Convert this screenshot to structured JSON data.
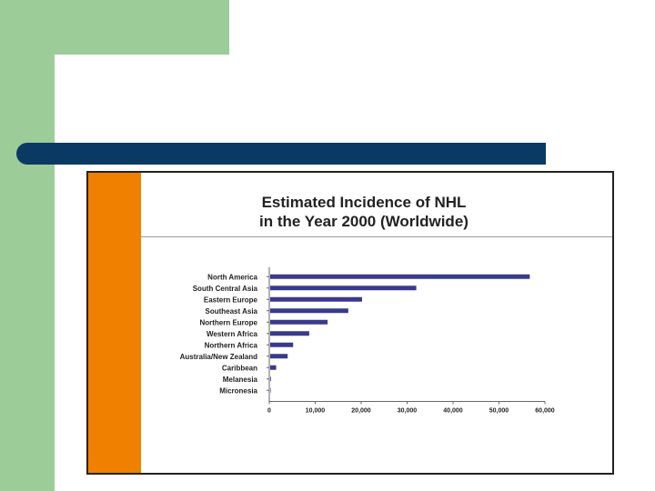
{
  "slide": {
    "colors": {
      "accent_green": "#9ccc98",
      "title_bar": "#0a3a64",
      "accent_orange": "#f08000",
      "bar": "#3a3a8c"
    }
  },
  "chart_data": {
    "type": "bar",
    "orientation": "horizontal",
    "title": "Estimated Incidence of NHL in the Year 2000 (Worldwide)",
    "title_lines": [
      "Estimated Incidence of NHL",
      "in the Year 2000 (Worldwide)"
    ],
    "categories": [
      "North America",
      "South Central Asia",
      "Eastern Europe",
      "Southeast Asia",
      "Northern Europe",
      "Western Africa",
      "Northern Africa",
      "Australia/New Zealand",
      "Caribbean",
      "Melanesia",
      "Micronesia"
    ],
    "values": [
      56500,
      31800,
      20000,
      17000,
      12500,
      8500,
      5000,
      3800,
      1300,
      150,
      50
    ],
    "xlim": [
      0,
      60000
    ],
    "xticks": [
      0,
      10000,
      20000,
      30000,
      40000,
      50000,
      60000
    ],
    "xtick_labels": [
      "0",
      "10,000",
      "20,000",
      "30,000",
      "40,000",
      "50,000",
      "60,000"
    ],
    "xlabel": "",
    "ylabel": ""
  }
}
